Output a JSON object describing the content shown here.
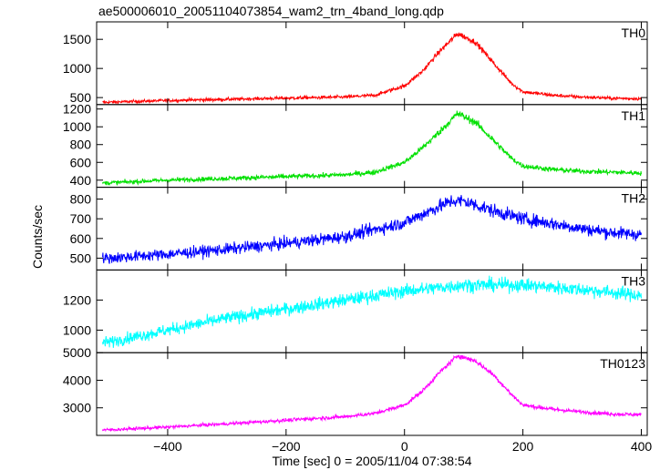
{
  "chart_data": {
    "type": "line",
    "title": "ae500006010_20051104073854_wam2_trn_4band_long.qdp",
    "xlabel": "Time [sec] 0 = 2005/11/04 07:38:54",
    "ylabel": "Counts/sec",
    "xlim": [
      -520,
      410
    ],
    "xticks": [
      -400,
      -200,
      0,
      200,
      400
    ],
    "xtick_labels": [
      "−400",
      "−200",
      "0",
      "200",
      "400"
    ],
    "grid": false,
    "panels": [
      {
        "name": "TH0",
        "color": "#ff0000",
        "ylim": [
          380,
          1800
        ],
        "yticks": [
          500,
          1000,
          1500
        ],
        "ytick_labels": [
          "500",
          "1000",
          "1500"
        ],
        "x": [
          -500,
          -400,
          -300,
          -200,
          -100,
          -50,
          0,
          30,
          60,
          90,
          120,
          150,
          180,
          200,
          250,
          300,
          350,
          400
        ],
        "values": [
          420,
          450,
          470,
          490,
          510,
          540,
          700,
          950,
          1300,
          1600,
          1450,
          1100,
          750,
          600,
          540,
          510,
          490,
          480
        ]
      },
      {
        "name": "TH1",
        "color": "#00e000",
        "ylim": [
          320,
          1250
        ],
        "yticks": [
          400,
          600,
          800,
          1000,
          1200
        ],
        "ytick_labels": [
          "400",
          "600",
          "800",
          "1000",
          "1200"
        ],
        "x": [
          -500,
          -400,
          -300,
          -200,
          -100,
          -50,
          0,
          30,
          60,
          90,
          120,
          150,
          180,
          200,
          250,
          300,
          350,
          400
        ],
        "values": [
          370,
          400,
          420,
          440,
          460,
          490,
          600,
          760,
          950,
          1150,
          1050,
          850,
          650,
          560,
          520,
          500,
          490,
          480
        ]
      },
      {
        "name": "TH2",
        "color": "#0000ff",
        "ylim": [
          440,
          860
        ],
        "yticks": [
          500,
          600,
          700,
          800
        ],
        "ytick_labels": [
          "500",
          "600",
          "700",
          "800"
        ],
        "x": [
          -500,
          -400,
          -300,
          -200,
          -100,
          0,
          50,
          80,
          100,
          150,
          200,
          250,
          300,
          350,
          400
        ],
        "values": [
          500,
          520,
          545,
          575,
          610,
          680,
          750,
          790,
          790,
          740,
          700,
          675,
          650,
          630,
          620
        ]
      },
      {
        "name": "TH3",
        "color": "#00ffff",
        "ylim": [
          850,
          1400
        ],
        "yticks": [
          1000,
          1200
        ],
        "ytick_labels": [
          "1000",
          "1200"
        ],
        "x": [
          -500,
          -400,
          -300,
          -200,
          -100,
          0,
          100,
          200,
          300,
          400
        ],
        "values": [
          920,
          1000,
          1080,
          1140,
          1200,
          1260,
          1300,
          1300,
          1270,
          1230
        ]
      },
      {
        "name": "TH0123",
        "color": "#ff00ff",
        "ylim": [
          2000,
          5000
        ],
        "yticks": [
          3000,
          4000,
          5000
        ],
        "ytick_labels": [
          "3000",
          "4000",
          "5000"
        ],
        "x": [
          -500,
          -400,
          -300,
          -200,
          -100,
          -50,
          0,
          30,
          60,
          90,
          120,
          150,
          180,
          200,
          250,
          300,
          350,
          400
        ],
        "values": [
          2200,
          2300,
          2420,
          2550,
          2680,
          2800,
          3100,
          3600,
          4300,
          4900,
          4700,
          4200,
          3500,
          3100,
          2950,
          2850,
          2780,
          2750
        ]
      }
    ]
  }
}
